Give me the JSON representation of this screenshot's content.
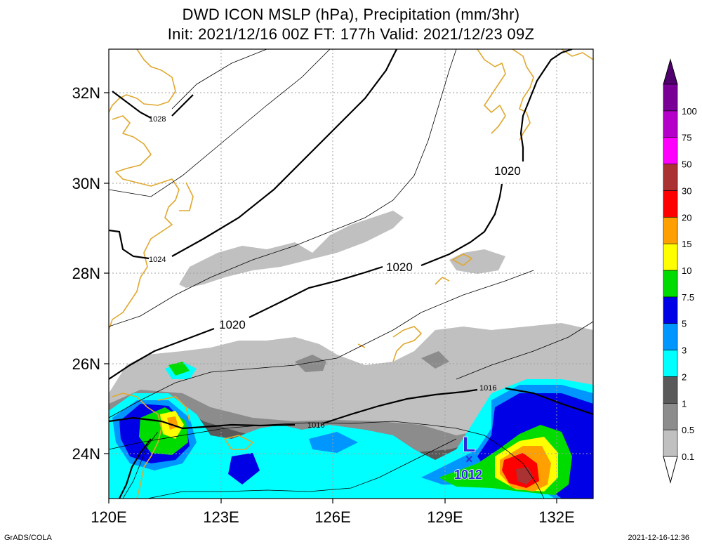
{
  "title": {
    "line1": "DWD ICON MSLP (hPa), Precipitation (mm/3hr)",
    "line2": "Init: 2021/12/16 00Z  FT: 177h  Valid: 2021/12/23 09Z"
  },
  "axes": {
    "lat_labels": [
      "32N",
      "30N",
      "28N",
      "26N",
      "24N"
    ],
    "lon_labels": [
      "120E",
      "123E",
      "126E",
      "129E",
      "132E"
    ]
  },
  "isobars": {
    "labels": [
      "1028",
      "1024",
      "1020",
      "1020",
      "1020",
      "1016",
      "1016"
    ]
  },
  "low_center": {
    "symbol": "L",
    "marker": "×",
    "pressure": "1012"
  },
  "colorbar": {
    "levels": [
      "0.1",
      "0.5",
      "1",
      "2",
      "3",
      "5",
      "7.5",
      "10",
      "15",
      "20",
      "30",
      "50",
      "75",
      "100"
    ],
    "colors": [
      "#c0c0c0",
      "#8c8c8c",
      "#5a5a5a",
      "#00ffff",
      "#0096ff",
      "#0000e6",
      "#00dc00",
      "#ffff00",
      "#ffa000",
      "#ff0000",
      "#aa3232",
      "#ff00ff",
      "#b400c8",
      "#780096",
      "#50006e"
    ]
  },
  "colors": {
    "coastline": "#e0a830",
    "grid": "#a0a0a0",
    "low_symbol": "#2a2adc"
  },
  "footer": {
    "left": "GrADS/COLA",
    "right": "2021-12-16-12:36"
  }
}
